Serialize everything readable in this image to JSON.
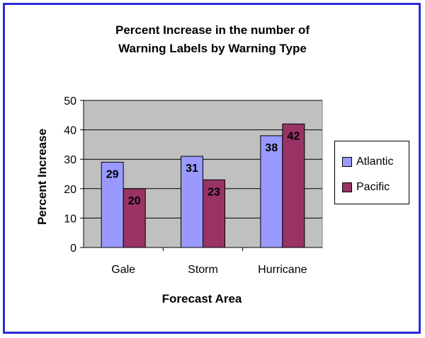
{
  "chart_data": {
    "type": "bar",
    "title_lines": [
      "Percent Increase in the number of",
      "Warning Labels by Warning Type"
    ],
    "xlabel": "Forecast Area",
    "ylabel": "Percent Increase",
    "categories": [
      "Gale",
      "Storm",
      "Hurricane"
    ],
    "series": [
      {
        "name": "Atlantic",
        "values": [
          29,
          31,
          38
        ],
        "color": "#9999ff"
      },
      {
        "name": "Pacific",
        "values": [
          20,
          23,
          42
        ],
        "color": "#993366"
      }
    ],
    "ylim": [
      0,
      50
    ],
    "yticks": [
      0,
      10,
      20,
      30,
      40,
      50
    ],
    "grid": true,
    "plot_background": "#c0c0c0",
    "legend_position": "right",
    "data_labels": true
  },
  "colors": {
    "frame_border": "#2b2bd9"
  }
}
